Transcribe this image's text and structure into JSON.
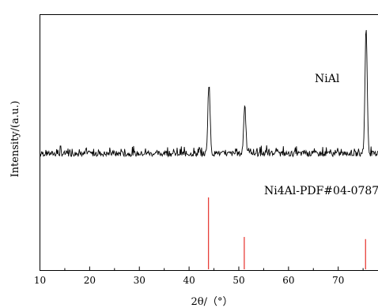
{
  "chart_data": {
    "type": "line",
    "xlabel": "2θ/（°）",
    "ylabel": "Intensity/(a.u.)",
    "xlim": [
      10,
      78
    ],
    "xticks": [
      10,
      20,
      30,
      40,
      50,
      60,
      70
    ],
    "grid": false,
    "series": [
      {
        "name": "NiAl",
        "kind": "xrd-pattern",
        "baseline_level": 0.05,
        "noise_level": 0.03,
        "peaks": [
          {
            "x": 44.0,
            "y": 0.58
          },
          {
            "x": 51.2,
            "y": 0.42
          },
          {
            "x": 75.6,
            "y": 1.0
          }
        ]
      },
      {
        "name": "Ni4Al-PDF#04-0787",
        "kind": "reference-sticks",
        "color": "#e8403a",
        "sticks": [
          {
            "x": 43.9,
            "y": 1.0
          },
          {
            "x": 51.1,
            "y": 0.45
          },
          {
            "x": 75.5,
            "y": 0.42
          }
        ]
      }
    ]
  },
  "annotations": {
    "pattern_label": "NiAl",
    "reference_label": "Ni4Al-PDF#04-0787"
  }
}
